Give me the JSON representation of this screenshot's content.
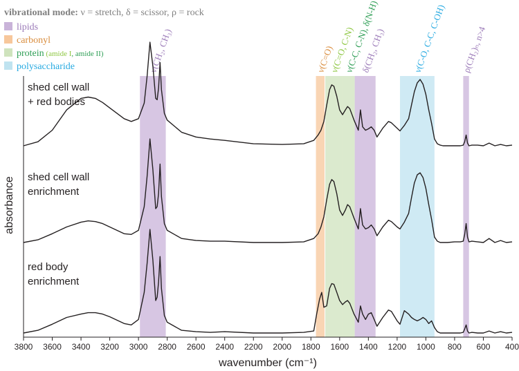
{
  "legend": {
    "mode_bold": "vibrational mode:",
    "mode_rest": " ν = stretch, δ = scissor, ρ = rock",
    "items": [
      {
        "label": "lipids",
        "color": "#c9b3d9",
        "text_color": "#9b7ab8"
      },
      {
        "label": "carbonyl",
        "color": "#f7c79b",
        "text_color": "#d98c3c"
      },
      {
        "label": "protein",
        "color": "#cfe3bd",
        "text_color": "#2e9e55",
        "note": "(amide I, amide II)",
        "note_parts": [
          {
            "text": "amide I",
            "color": "#8cc63f"
          },
          {
            "text": "amide II",
            "color": "#2e9e55"
          }
        ]
      },
      {
        "label": "polysaccharide",
        "color": "#bfe3f0",
        "text_color": "#27aae1"
      }
    ]
  },
  "chart_data": {
    "type": "line",
    "xlabel": "wavenumber (cm⁻¹)",
    "ylabel": "absorbance",
    "xlim": [
      3800,
      400
    ],
    "x_reversed": true,
    "xticks": [
      3800,
      3600,
      3400,
      3200,
      3000,
      2800,
      2600,
      2400,
      2200,
      2000,
      1800,
      1600,
      1400,
      1200,
      1000,
      800,
      600,
      400
    ],
    "grid": false,
    "bands": [
      {
        "from": 2990,
        "to": 2810,
        "group": "lipids",
        "label": "ν(CH₂, CH₃)",
        "label_color": "#9b7ab8"
      },
      {
        "from": 1765,
        "to": 1705,
        "group": "carbonyl",
        "label": "ν(C=O)",
        "label_color": "#d98c3c"
      },
      {
        "from": 1700,
        "to": 1580,
        "group": "protein-amide-I",
        "label": "ν(C=O, C-N)",
        "label_color": "#8cc63f"
      },
      {
        "from": 1580,
        "to": 1495,
        "group": "protein-amide-II",
        "label": "ν(C-C, C-N), δ(N-H)",
        "label_color": "#2e9e55"
      },
      {
        "from": 1495,
        "to": 1350,
        "group": "lipids",
        "label": "δ(CH₂, CH₃)",
        "label_color": "#9b7ab8"
      },
      {
        "from": 1180,
        "to": 940,
        "group": "polysaccharide",
        "label": "ν(C-O, C-C, C-OH)",
        "label_color": "#27aae1"
      },
      {
        "from": 740,
        "to": 700,
        "group": "lipids",
        "label": "ρ(CH₂)ₙ, n>4",
        "label_color": "#9b7ab8"
      }
    ],
    "series": [
      {
        "name": "shed cell wall + red bodies",
        "name_lines": [
          "shed cell wall",
          "+ red bodies"
        ],
        "x": [
          3800,
          3700,
          3600,
          3500,
          3400,
          3350,
          3300,
          3250,
          3200,
          3100,
          3050,
          3000,
          2960,
          2940,
          2920,
          2900,
          2880,
          2870,
          2860,
          2850,
          2840,
          2820,
          2800,
          2700,
          2600,
          2500,
          2400,
          2200,
          2000,
          1850,
          1780,
          1750,
          1730,
          1710,
          1690,
          1670,
          1655,
          1640,
          1620,
          1600,
          1580,
          1560,
          1545,
          1530,
          1500,
          1470,
          1455,
          1440,
          1420,
          1400,
          1380,
          1360,
          1340,
          1300,
          1260,
          1240,
          1200,
          1180,
          1150,
          1120,
          1100,
          1080,
          1060,
          1040,
          1020,
          1000,
          980,
          960,
          940,
          920,
          900,
          880,
          850,
          800,
          760,
          740,
          730,
          720,
          710,
          700,
          680,
          640,
          600,
          560,
          520,
          480,
          440,
          400
        ],
        "y": [
          0.02,
          0.08,
          0.25,
          0.55,
          0.72,
          0.74,
          0.72,
          0.66,
          0.58,
          0.42,
          0.38,
          0.42,
          0.65,
          1.05,
          1.55,
          1.2,
          0.72,
          0.7,
          0.88,
          1.25,
          0.85,
          0.5,
          0.4,
          0.22,
          0.15,
          0.12,
          0.1,
          0.05,
          0.04,
          0.05,
          0.1,
          0.18,
          0.25,
          0.38,
          0.62,
          0.85,
          0.92,
          0.9,
          0.75,
          0.55,
          0.48,
          0.55,
          0.6,
          0.57,
          0.4,
          0.25,
          0.55,
          0.3,
          0.25,
          0.27,
          0.3,
          0.25,
          0.15,
          0.28,
          0.38,
          0.36,
          0.28,
          0.24,
          0.32,
          0.42,
          0.62,
          0.82,
          0.95,
          1.0,
          0.93,
          0.78,
          0.55,
          0.35,
          0.12,
          0.05,
          0.03,
          0.02,
          0.02,
          0.02,
          0.02,
          0.03,
          0.08,
          0.18,
          0.06,
          0.02,
          0.03,
          0.03,
          0.02,
          0.06,
          0.02,
          0.04,
          0.02,
          0.03
        ]
      },
      {
        "name": "shed cell wall enrichment",
        "name_lines": [
          "shed cell wall",
          "enrichment"
        ],
        "x": [
          3800,
          3700,
          3600,
          3500,
          3400,
          3350,
          3300,
          3250,
          3200,
          3100,
          3050,
          3000,
          2960,
          2940,
          2920,
          2900,
          2880,
          2870,
          2860,
          2850,
          2840,
          2820,
          2800,
          2700,
          2600,
          2500,
          2400,
          2200,
          2000,
          1850,
          1780,
          1750,
          1730,
          1710,
          1690,
          1670,
          1655,
          1640,
          1620,
          1600,
          1580,
          1560,
          1545,
          1530,
          1500,
          1470,
          1455,
          1440,
          1420,
          1400,
          1380,
          1360,
          1340,
          1300,
          1260,
          1240,
          1200,
          1180,
          1150,
          1120,
          1100,
          1080,
          1060,
          1040,
          1020,
          1000,
          980,
          960,
          940,
          920,
          900,
          880,
          850,
          800,
          760,
          740,
          730,
          720,
          710,
          700,
          680,
          640,
          600,
          560,
          520,
          480,
          440,
          400
        ],
        "y": [
          0.02,
          0.06,
          0.15,
          0.25,
          0.32,
          0.34,
          0.33,
          0.3,
          0.25,
          0.15,
          0.14,
          0.2,
          0.55,
          1.0,
          1.55,
          1.1,
          0.52,
          0.55,
          0.75,
          1.18,
          0.7,
          0.3,
          0.2,
          0.08,
          0.05,
          0.04,
          0.04,
          0.02,
          0.02,
          0.03,
          0.08,
          0.15,
          0.25,
          0.4,
          0.65,
          0.88,
          0.95,
          0.92,
          0.74,
          0.5,
          0.42,
          0.5,
          0.58,
          0.55,
          0.38,
          0.22,
          0.52,
          0.28,
          0.22,
          0.24,
          0.28,
          0.22,
          0.12,
          0.25,
          0.35,
          0.33,
          0.25,
          0.22,
          0.32,
          0.45,
          0.68,
          0.9,
          1.02,
          1.05,
          0.98,
          0.82,
          0.58,
          0.36,
          0.1,
          0.04,
          0.02,
          0.02,
          0.02,
          0.03,
          0.03,
          0.04,
          0.14,
          0.3,
          0.1,
          0.03,
          0.04,
          0.03,
          0.02,
          0.08,
          0.02,
          0.05,
          0.02,
          0.03
        ]
      },
      {
        "name": "red body enrichment",
        "name_lines": [
          "red body",
          "enrichment"
        ],
        "x": [
          3800,
          3700,
          3600,
          3500,
          3400,
          3350,
          3300,
          3250,
          3200,
          3100,
          3050,
          3000,
          2960,
          2940,
          2920,
          2900,
          2880,
          2870,
          2860,
          2850,
          2840,
          2820,
          2800,
          2700,
          2600,
          2500,
          2400,
          2200,
          2000,
          1850,
          1780,
          1760,
          1740,
          1725,
          1710,
          1690,
          1670,
          1655,
          1640,
          1620,
          1600,
          1580,
          1560,
          1545,
          1530,
          1500,
          1470,
          1455,
          1440,
          1420,
          1400,
          1380,
          1360,
          1340,
          1300,
          1260,
          1240,
          1200,
          1180,
          1150,
          1120,
          1100,
          1080,
          1060,
          1040,
          1020,
          1000,
          980,
          960,
          940,
          920,
          900,
          880,
          850,
          800,
          760,
          740,
          730,
          720,
          710,
          700,
          680,
          640,
          600,
          560,
          520,
          480,
          440,
          400
        ],
        "y": [
          0.02,
          0.06,
          0.15,
          0.25,
          0.3,
          0.32,
          0.32,
          0.3,
          0.26,
          0.16,
          0.14,
          0.22,
          0.62,
          1.05,
          1.55,
          1.1,
          0.5,
          0.55,
          0.78,
          1.15,
          0.68,
          0.28,
          0.18,
          0.06,
          0.04,
          0.03,
          0.04,
          0.02,
          0.02,
          0.03,
          0.05,
          0.3,
          0.52,
          0.62,
          0.4,
          0.42,
          0.68,
          0.75,
          0.74,
          0.62,
          0.5,
          0.44,
          0.48,
          0.5,
          0.46,
          0.3,
          0.18,
          0.42,
          0.3,
          0.22,
          0.3,
          0.32,
          0.22,
          0.12,
          0.25,
          0.36,
          0.34,
          0.2,
          0.15,
          0.35,
          0.3,
          0.25,
          0.22,
          0.2,
          0.22,
          0.25,
          0.22,
          0.16,
          0.2,
          0.1,
          0.04,
          0.02,
          0.02,
          0.02,
          0.02,
          0.02,
          0.03,
          0.08,
          0.14,
          0.05,
          0.02,
          0.03,
          0.02,
          0.02,
          0.05,
          0.02,
          0.04,
          0.02,
          0.03
        ]
      }
    ]
  }
}
